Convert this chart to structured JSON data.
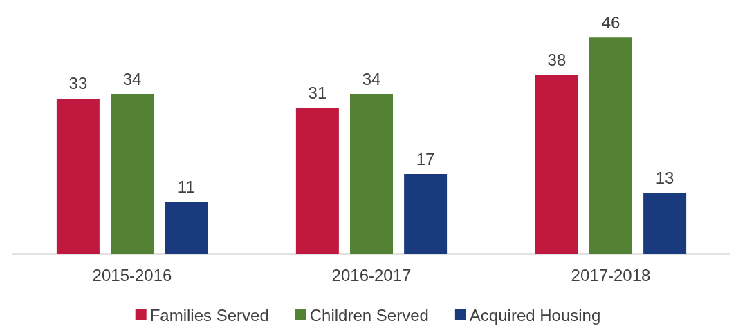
{
  "chart_data": {
    "type": "bar",
    "categories": [
      "2015-2016",
      "2016-2017",
      "2017-2018"
    ],
    "series": [
      {
        "name": "Families Served",
        "color": "#c0183f",
        "values": [
          33,
          31,
          38
        ]
      },
      {
        "name": "Children Served",
        "color": "#548235",
        "values": [
          34,
          34,
          46
        ]
      },
      {
        "name": "Acquired Housing",
        "color": "#1a3a7e",
        "values": [
          11,
          17,
          13
        ]
      }
    ],
    "data_labels": true,
    "legend": "bottom"
  }
}
